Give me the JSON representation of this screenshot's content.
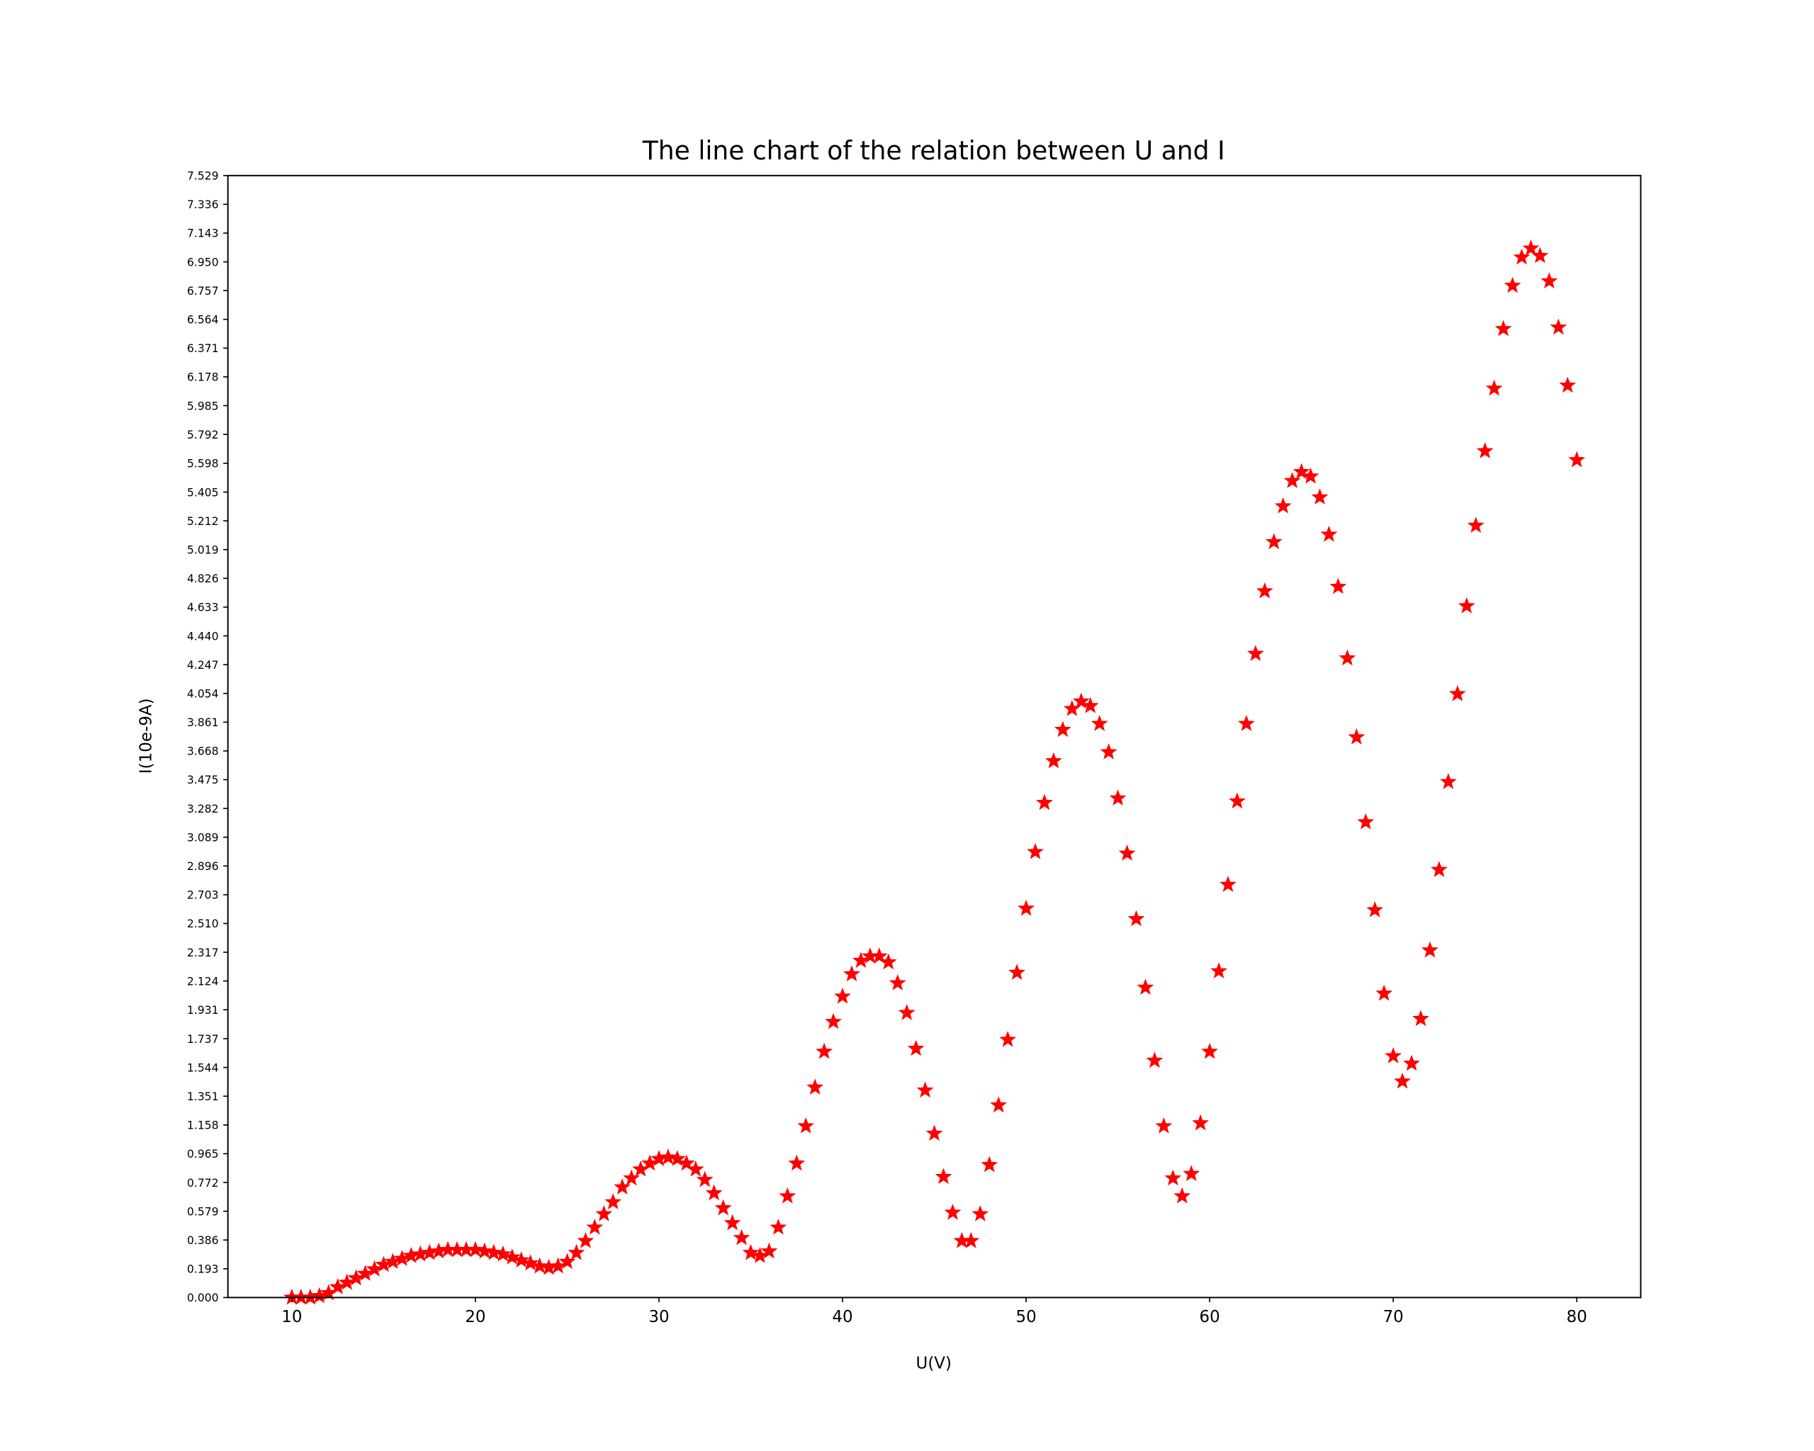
{
  "chart_data": {
    "type": "scatter",
    "title": "The line chart of the relation between U and I",
    "x_label": "U(V)",
    "y_label": "I(10e-9A)",
    "marker": "*",
    "color": "#ff0000",
    "x": [
      10,
      10.5,
      11,
      11.5,
      12,
      12.5,
      13,
      13.5,
      14,
      14.5,
      15,
      15.5,
      16,
      16.5,
      17,
      17.5,
      18,
      18.5,
      19,
      19.5,
      20,
      20.5,
      21,
      21.5,
      22,
      22.5,
      23,
      23.5,
      24,
      24.5,
      25,
      25.5,
      26,
      26.5,
      27,
      27.5,
      28,
      28.5,
      29,
      29.5,
      30,
      30.5,
      31,
      31.5,
      32,
      32.5,
      33,
      33.5,
      34,
      34.5,
      35,
      35.5,
      36,
      36.5,
      37,
      37.5,
      38,
      38.5,
      39,
      39.5,
      40,
      40.5,
      41,
      41.5,
      42,
      42.5,
      43,
      43.5,
      44,
      44.5,
      45,
      45.5,
      46,
      46.5,
      47,
      47.5,
      48,
      48.5,
      49,
      49.5,
      50,
      50.5,
      51,
      51.5,
      52,
      52.5,
      53,
      53.5,
      54,
      54.5,
      55,
      55.5,
      56,
      56.5,
      57,
      57.5,
      58,
      58.5,
      59,
      59.5,
      60,
      60.5,
      61,
      61.5,
      62,
      62.5,
      63,
      63.5,
      64,
      64.5,
      65,
      65.5,
      66,
      66.5,
      67,
      67.5,
      68,
      68.5,
      69,
      69.5,
      70,
      70.5,
      71,
      71.5,
      72,
      72.5,
      73,
      73.5,
      74,
      74.5,
      75,
      75.5,
      76,
      76.5,
      77,
      77.5,
      78,
      78.5,
      79,
      79.5,
      80
    ],
    "values": [
      0.0,
      0.0,
      0.0,
      0.01,
      0.03,
      0.07,
      0.1,
      0.13,
      0.16,
      0.19,
      0.22,
      0.24,
      0.26,
      0.28,
      0.29,
      0.3,
      0.31,
      0.32,
      0.32,
      0.32,
      0.32,
      0.31,
      0.3,
      0.29,
      0.27,
      0.25,
      0.23,
      0.21,
      0.2,
      0.21,
      0.24,
      0.3,
      0.38,
      0.47,
      0.56,
      0.64,
      0.74,
      0.8,
      0.86,
      0.9,
      0.93,
      0.94,
      0.93,
      0.9,
      0.86,
      0.79,
      0.7,
      0.6,
      0.5,
      0.4,
      0.3,
      0.28,
      0.31,
      0.47,
      0.68,
      0.9,
      1.15,
      1.41,
      1.65,
      1.85,
      2.02,
      2.17,
      2.26,
      2.29,
      2.29,
      2.25,
      2.11,
      1.91,
      1.67,
      1.39,
      1.1,
      0.81,
      0.57,
      0.38,
      0.38,
      0.56,
      0.89,
      1.29,
      1.73,
      2.18,
      2.61,
      2.99,
      3.32,
      3.6,
      3.81,
      3.95,
      4.0,
      3.97,
      3.85,
      3.66,
      3.35,
      2.98,
      2.54,
      2.08,
      1.59,
      1.15,
      0.8,
      0.68,
      0.83,
      1.17,
      1.65,
      2.19,
      2.77,
      3.33,
      3.85,
      4.32,
      4.74,
      5.07,
      5.31,
      5.48,
      5.54,
      5.51,
      5.37,
      5.12,
      4.77,
      4.29,
      3.76,
      3.19,
      2.6,
      2.04,
      1.62,
      1.45,
      1.57,
      1.87,
      2.33,
      2.87,
      3.46,
      4.05,
      4.64,
      5.18,
      5.68,
      6.1,
      6.5,
      6.79,
      6.98,
      7.04,
      6.99,
      6.82,
      6.51,
      6.12,
      5.62
    ],
    "xlim": [
      6.516,
      83.484
    ],
    "xticks": [
      10,
      20,
      30,
      40,
      50,
      60,
      70,
      80
    ],
    "ylim": [
      0,
      7.529
    ],
    "yticks": [
      {
        "value": 0,
        "label": "0.000"
      },
      0.193,
      0.386,
      0.579,
      0.772,
      0.965,
      1.158,
      1.351,
      1.544,
      1.737,
      1.931,
      2.124,
      2.317,
      {
        "value": 2.51,
        "label": "2.510"
      },
      2.703,
      2.896,
      3.089,
      3.282,
      3.475,
      3.668,
      3.861,
      4.054,
      4.247,
      {
        "value": 4.44,
        "label": "4.440"
      },
      4.633,
      4.826,
      5.019,
      5.212,
      5.405,
      5.598,
      5.792,
      5.985,
      6.178,
      6.371,
      6.564,
      6.757,
      {
        "value": 6.95,
        "label": "6.950"
      },
      7.143,
      7.336,
      7.529
    ],
    "grid": false
  }
}
